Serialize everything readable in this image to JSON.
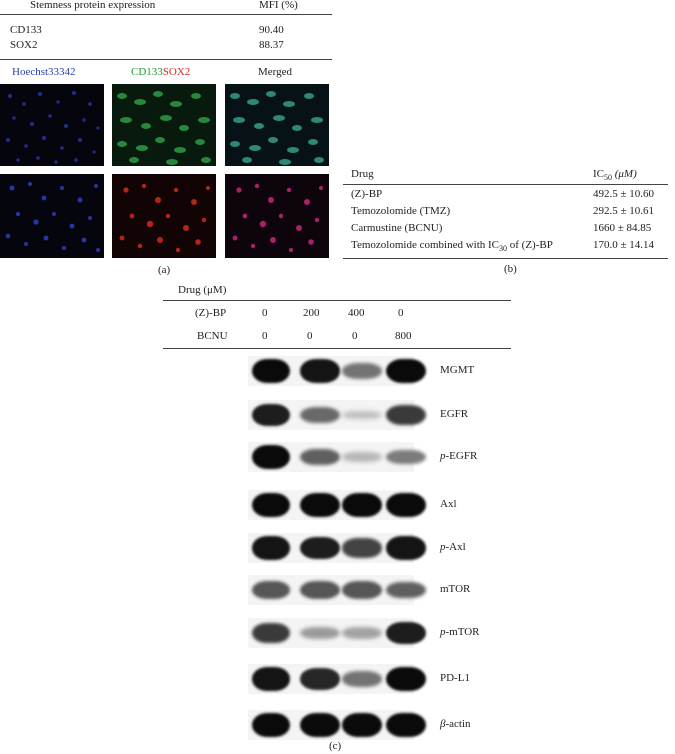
{
  "panel_a": {
    "table": {
      "header_left": "Stemness protein expression",
      "header_right": "MFI (%)",
      "rows": [
        {
          "marker": "CD133",
          "mfi": "90.40"
        },
        {
          "marker": "SOX2",
          "mfi": "88.37"
        }
      ]
    },
    "column_labels": {
      "col1": "Hoechst33342",
      "col2_part1": "CD133",
      "col2_part2": "SOX2",
      "col3": "Merged"
    },
    "colors": {
      "hoechst": "#2b3fb0",
      "cd133": "#1f9a2c",
      "sox2": "#d42a1e"
    },
    "caption": "(a)"
  },
  "panel_b": {
    "header_drug": "Drug",
    "header_ic_prefix": "IC",
    "header_ic_sub": "50",
    "header_ic_unit": "(μM)",
    "rows": [
      {
        "drug": "(Z)-BP",
        "value": "492.5 ± 10.60"
      },
      {
        "drug": "Temozolomide (TMZ)",
        "value": "292.5 ± 10.61"
      },
      {
        "drug": "Carmustine (BCNU)",
        "value": "1660 ± 84.85"
      },
      {
        "drug_prefix": "Temozolomide combined with IC",
        "drug_sub": "30",
        "drug_suffix": " of (Z)-BP",
        "value": "170.0 ± 14.14"
      }
    ],
    "caption": "(b)"
  },
  "panel_c": {
    "drug_header": "Drug (μM)",
    "conditions": [
      {
        "label": "(Z)-BP",
        "values": [
          "0",
          "200",
          "400",
          "0"
        ]
      },
      {
        "label": "BCNU",
        "values": [
          "0",
          "0",
          "0",
          "800"
        ]
      }
    ],
    "blots": [
      {
        "label": "MGMT",
        "prefix": "",
        "intensity": [
          1.0,
          0.95,
          0.45,
          1.0
        ]
      },
      {
        "label": "EGFR",
        "prefix": "",
        "intensity": [
          0.9,
          0.5,
          0.05,
          0.75
        ]
      },
      {
        "label": "-EGFR",
        "prefix": "p",
        "intensity": [
          1.0,
          0.55,
          0.1,
          0.4
        ]
      },
      {
        "label": "Axl",
        "prefix": "",
        "intensity": [
          1.0,
          1.0,
          1.0,
          1.0
        ]
      },
      {
        "label": "-Axl",
        "prefix": "p",
        "intensity": [
          0.95,
          0.9,
          0.7,
          0.95
        ]
      },
      {
        "label": "mTOR",
        "prefix": "",
        "intensity": [
          0.6,
          0.6,
          0.6,
          0.55
        ]
      },
      {
        "label": "-mTOR",
        "prefix": "p",
        "intensity": [
          0.75,
          0.25,
          0.2,
          0.9
        ]
      },
      {
        "label": "PD-L1",
        "prefix": "",
        "intensity": [
          0.95,
          0.85,
          0.45,
          1.0
        ]
      },
      {
        "label": "-actin",
        "prefix": "β",
        "intensity": [
          1.0,
          1.0,
          1.0,
          1.0
        ]
      }
    ],
    "caption": "(c)"
  }
}
